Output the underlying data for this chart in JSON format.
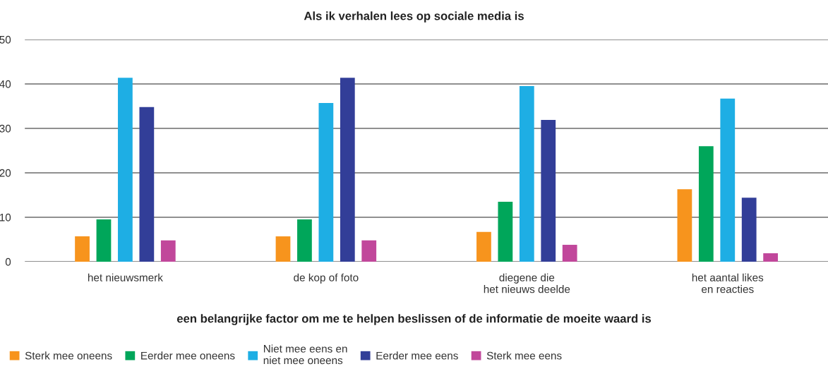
{
  "chart_data": {
    "type": "bar",
    "title": "Als ik verhalen lees op sociale media is",
    "xlabel": "een belangrijke factor om me te helpen beslissen of de informatie de moeite waard is",
    "categories": [
      "het nieuwsmerk",
      "de kop of foto",
      "diegene die\nhet nieuws deelde",
      "het aantal likes\nen reacties"
    ],
    "series": [
      {
        "name": "Sterk mee oneens",
        "color": "#f7941d",
        "values": [
          5.7,
          5.7,
          6.7,
          16.3
        ]
      },
      {
        "name": "Eerder mee oneens",
        "color": "#00a65a",
        "values": [
          9.5,
          9.5,
          13.5,
          26.0
        ]
      },
      {
        "name": "Niet mee eens en\nniet mee oneens",
        "color": "#1eaee4",
        "values": [
          41.4,
          35.7,
          39.5,
          36.7
        ]
      },
      {
        "name": "Eerder mee eens",
        "color": "#323e98",
        "values": [
          34.8,
          41.4,
          31.9,
          14.4
        ]
      },
      {
        "name": "Sterk mee eens",
        "color": "#c1479b",
        "values": [
          4.8,
          4.8,
          3.8,
          1.9
        ]
      }
    ],
    "ylim": [
      0,
      50
    ],
    "yticks": [
      0,
      10,
      20,
      30,
      40,
      50
    ],
    "grid": "y",
    "legend": "bottom"
  }
}
